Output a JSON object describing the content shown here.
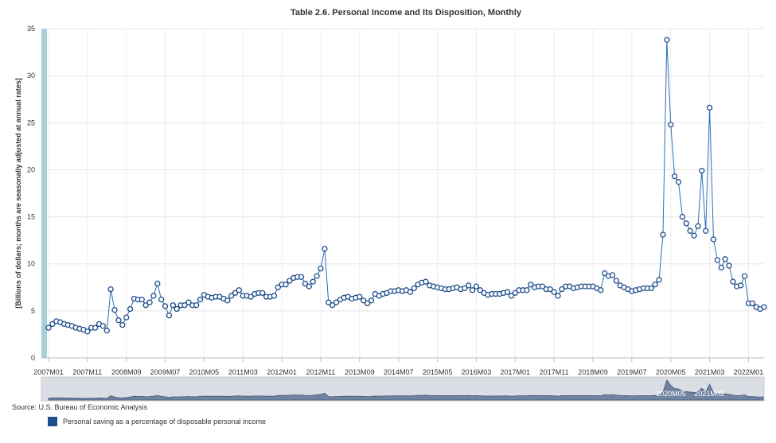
{
  "chart_data": {
    "type": "line",
    "title": "Table 2.6. Personal Income and Its Disposition, Monthly",
    "ylabel": "[Billions of dollars; months are seasonally adjusted at annual rates]",
    "xlabel": "",
    "ylim": [
      0,
      35
    ],
    "yticks": [
      0,
      5,
      10,
      15,
      20,
      25,
      30,
      35
    ],
    "grid": true,
    "start": "2007M01",
    "xticks": [
      "2007M01",
      "2007M11",
      "2008M09",
      "2009M07",
      "2010M05",
      "2011M03",
      "2012M01",
      "2012M11",
      "2013M09",
      "2014M07",
      "2015M05",
      "2016M03",
      "2017M01",
      "2017M11",
      "2018M09",
      "2019M07",
      "2020M05",
      "2021M03",
      "2022M01"
    ],
    "series": [
      {
        "name": "Personal saving as a percentage of disposable personal income",
        "color": "#1f4e8c",
        "values": [
          3.2,
          3.6,
          3.9,
          3.8,
          3.6,
          3.5,
          3.4,
          3.2,
          3.1,
          3.0,
          2.8,
          3.2,
          3.2,
          3.6,
          3.4,
          2.9,
          7.3,
          5.1,
          4.0,
          3.5,
          4.3,
          5.2,
          6.3,
          6.2,
          6.2,
          5.6,
          5.9,
          6.6,
          7.9,
          6.2,
          5.5,
          4.5,
          5.6,
          5.2,
          5.6,
          5.6,
          5.9,
          5.6,
          5.6,
          6.2,
          6.7,
          6.5,
          6.4,
          6.5,
          6.5,
          6.3,
          6.1,
          6.6,
          6.9,
          7.2,
          6.6,
          6.6,
          6.5,
          6.8,
          6.9,
          6.9,
          6.5,
          6.5,
          6.6,
          7.5,
          7.8,
          7.8,
          8.2,
          8.5,
          8.6,
          8.6,
          7.9,
          7.6,
          8.1,
          8.7,
          9.5,
          11.6,
          5.9,
          5.6,
          5.9,
          6.2,
          6.4,
          6.5,
          6.3,
          6.4,
          6.5,
          6.1,
          5.8,
          6.1,
          6.8,
          6.6,
          6.8,
          6.9,
          7.1,
          7.1,
          7.2,
          7.1,
          7.2,
          7.0,
          7.4,
          7.8,
          8.0,
          8.1,
          7.7,
          7.6,
          7.5,
          7.4,
          7.3,
          7.3,
          7.4,
          7.5,
          7.3,
          7.4,
          7.7,
          7.2,
          7.6,
          7.2,
          6.9,
          6.7,
          6.8,
          6.8,
          6.8,
          6.9,
          7.0,
          6.6,
          6.9,
          7.2,
          7.2,
          7.2,
          7.8,
          7.5,
          7.6,
          7.6,
          7.3,
          7.3,
          7.0,
          6.6,
          7.3,
          7.6,
          7.6,
          7.4,
          7.5,
          7.6,
          7.6,
          7.6,
          7.6,
          7.4,
          7.2,
          9.0,
          8.7,
          8.8,
          8.2,
          7.7,
          7.5,
          7.3,
          7.1,
          7.2,
          7.3,
          7.4,
          7.4,
          7.4,
          7.8,
          8.3,
          13.1,
          33.8,
          24.8,
          19.3,
          18.7,
          15.0,
          14.3,
          13.5,
          13.0,
          14.0,
          19.9,
          13.5,
          26.6,
          12.6,
          10.4,
          9.6,
          10.5,
          9.8,
          8.1,
          7.6,
          7.7,
          8.7,
          5.8,
          5.8,
          5.4,
          5.2,
          5.4
        ]
      }
    ]
  },
  "source": "Source: U.S. Bureau of Economic Analysis",
  "legend": {
    "label": "Personal saving as a percentage of disposable personal income",
    "color": "#1f4e8c"
  },
  "navigator": {
    "labels": [
      "2020M05",
      "2021M03"
    ]
  }
}
